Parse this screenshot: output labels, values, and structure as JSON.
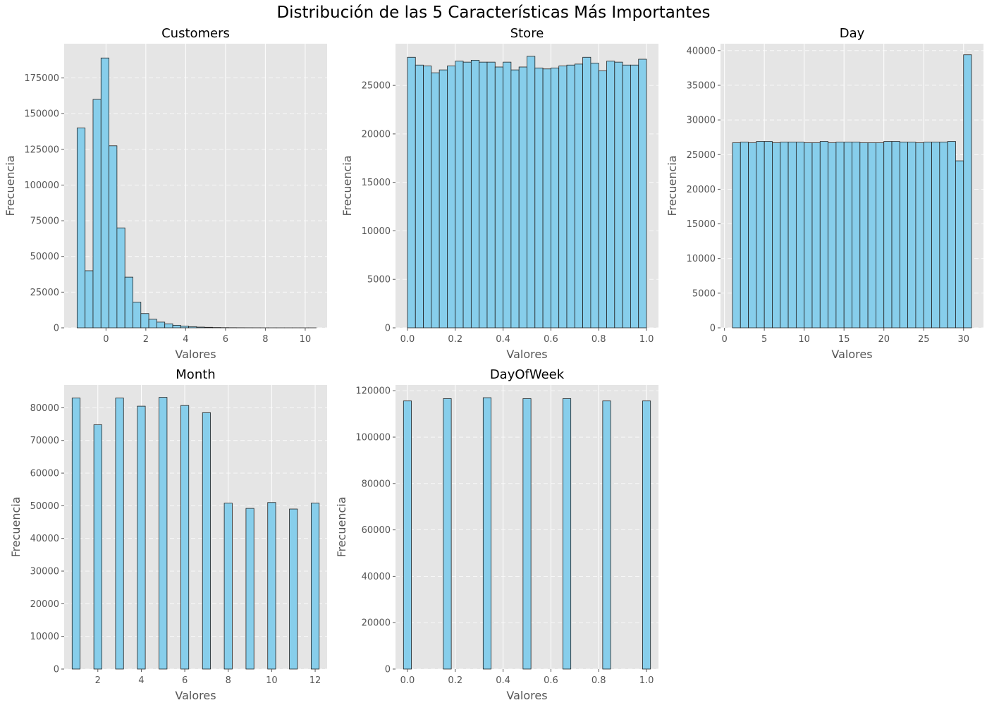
{
  "figure": {
    "title": "Distribución de las 5 Características Más Importantes"
  },
  "chart_data": [
    {
      "type": "bar",
      "title": "Customers",
      "xlabel": "Valores",
      "ylabel": "Frecuencia",
      "xlim": [
        -2.1,
        11.1
      ],
      "ylim": [
        0,
        199000
      ],
      "xticks": [
        0,
        2,
        4,
        6,
        8,
        10
      ],
      "yticks": [
        0,
        25000,
        50000,
        75000,
        100000,
        125000,
        150000,
        175000
      ],
      "grid": true,
      "bin_start": -1.45,
      "bin_width": 0.4,
      "values": [
        140000,
        40000,
        160000,
        189000,
        127500,
        70000,
        35500,
        18000,
        10000,
        6000,
        4000,
        2800,
        1800,
        1200,
        800,
        500,
        350,
        200,
        120,
        80,
        50,
        30,
        20,
        10,
        5,
        3,
        2,
        1,
        1,
        1
      ]
    },
    {
      "type": "bar",
      "title": "Store",
      "xlabel": "Valores",
      "ylabel": "Frecuencia",
      "xlim": [
        -0.05,
        1.05
      ],
      "ylim": [
        0,
        29300
      ],
      "xticks": [
        0.0,
        0.2,
        0.4,
        0.6,
        0.8,
        1.0
      ],
      "yticks": [
        0,
        5000,
        10000,
        15000,
        20000,
        25000
      ],
      "grid": true,
      "bin_start": 0.0,
      "bin_width": 0.03333,
      "values": [
        27900,
        27100,
        27000,
        26300,
        26600,
        27000,
        27500,
        27400,
        27600,
        27400,
        27400,
        26900,
        27400,
        26600,
        26900,
        28000,
        26800,
        26700,
        26800,
        27000,
        27100,
        27200,
        27900,
        27300,
        26500,
        27500,
        27400,
        27100,
        27100,
        27700
      ]
    },
    {
      "type": "bar",
      "title": "Day",
      "xlabel": "Valores",
      "ylabel": "Frecuencia",
      "xlim": [
        -0.5,
        32.5
      ],
      "ylim": [
        0,
        41000
      ],
      "xticks": [
        0,
        5,
        10,
        15,
        20,
        25,
        30
      ],
      "yticks": [
        0,
        5000,
        10000,
        15000,
        20000,
        25000,
        30000,
        35000,
        40000
      ],
      "grid": true,
      "bin_start": 1.0,
      "bin_width": 1.0,
      "values": [
        26700,
        26800,
        26700,
        26900,
        26900,
        26700,
        26800,
        26800,
        26800,
        26700,
        26700,
        26900,
        26700,
        26800,
        26800,
        26800,
        26700,
        26700,
        26700,
        26900,
        26900,
        26800,
        26800,
        26700,
        26800,
        26800,
        26800,
        26900,
        24100,
        39400
      ]
    },
    {
      "type": "bar",
      "title": "Month",
      "xlabel": "Valores",
      "ylabel": "Frecuencia",
      "xlim": [
        0.45,
        12.55
      ],
      "ylim": [
        0,
        87000
      ],
      "xticks": [
        2,
        4,
        6,
        8,
        10,
        12
      ],
      "yticks": [
        0,
        10000,
        20000,
        30000,
        40000,
        50000,
        60000,
        70000,
        80000
      ],
      "grid": true,
      "categories": [
        1,
        2,
        3,
        4,
        5,
        6,
        7,
        8,
        9,
        10,
        11,
        12
      ],
      "values": [
        83000,
        74800,
        83000,
        80500,
        83200,
        80700,
        78500,
        50800,
        49200,
        51000,
        49000,
        50800
      ],
      "bar_width": 0.367
    },
    {
      "type": "bar",
      "title": "DayOfWeek",
      "xlabel": "Valores",
      "ylabel": "Frecuencia",
      "xlim": [
        -0.05,
        1.05
      ],
      "ylim": [
        0,
        122500
      ],
      "xticks": [
        0.0,
        0.2,
        0.4,
        0.6,
        0.8,
        1.0
      ],
      "yticks": [
        0,
        20000,
        40000,
        60000,
        80000,
        100000,
        120000
      ],
      "grid": true,
      "categories": [
        0.0,
        0.1667,
        0.3333,
        0.5,
        0.6667,
        0.8333,
        1.0
      ],
      "values": [
        115600,
        116600,
        117000,
        116600,
        116600,
        115600,
        115600
      ],
      "bar_width": 0.0333
    }
  ]
}
